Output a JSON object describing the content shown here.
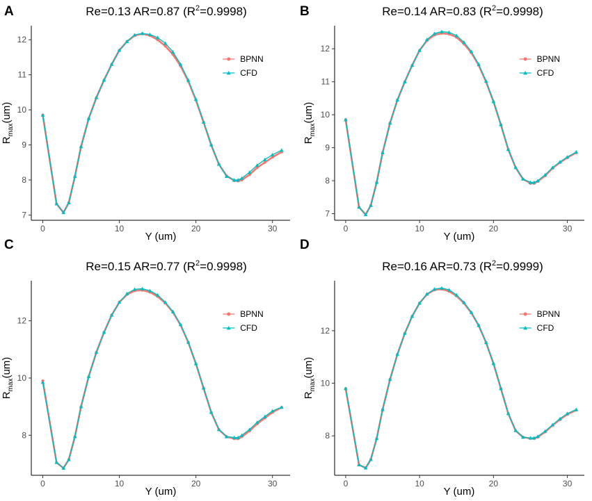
{
  "chart_data": [
    {
      "panel": "A",
      "type": "line",
      "title": {
        "main": "Re=0.13 AR=0.87 (R",
        "sup": "2",
        "tail": "=0.9998)"
      },
      "xlabel": "Y (um)",
      "ylabel": {
        "main": "R",
        "sub": "max",
        "tail": "(um)"
      },
      "xlim": [
        -1.5,
        32.3
      ],
      "ylim": [
        6.85,
        12.4
      ],
      "xticks": [
        0,
        10,
        20,
        30
      ],
      "yticks": [
        7,
        8,
        9,
        10,
        11,
        12
      ],
      "legend": {
        "position": "right",
        "items": [
          "BPNN",
          "CFD"
        ]
      },
      "series": [
        {
          "name": "BPNN",
          "color": "#f8766d",
          "marker": "circle",
          "x": [
            0,
            1.8,
            2.7,
            3.4,
            4.2,
            5.0,
            6.0,
            7.0,
            8.0,
            9.0,
            10.0,
            11.0,
            12.0,
            13.0,
            14.0,
            15.0,
            16.0,
            17.0,
            18.0,
            19.0,
            20.0,
            21.0,
            22.0,
            23.0,
            24.0,
            25.0,
            25.5,
            26.0,
            27.0,
            28.0,
            29.0,
            30.0,
            31.2
          ],
          "y": [
            9.85,
            7.32,
            7.07,
            7.35,
            8.1,
            8.95,
            9.75,
            10.35,
            10.85,
            11.3,
            11.7,
            11.95,
            12.12,
            12.17,
            12.12,
            12.0,
            11.82,
            11.58,
            11.25,
            10.82,
            10.28,
            9.65,
            9.0,
            8.45,
            8.12,
            7.98,
            7.97,
            8.0,
            8.15,
            8.35,
            8.5,
            8.65,
            8.8
          ]
        },
        {
          "name": "CFD",
          "color": "#00bfc4",
          "marker": "triangle",
          "x": [
            0,
            1.8,
            2.7,
            3.4,
            4.2,
            5.0,
            6.0,
            7.0,
            8.0,
            9.0,
            10.0,
            11.0,
            12.0,
            13.0,
            14.0,
            15.0,
            16.0,
            17.0,
            18.0,
            19.0,
            20.0,
            21.0,
            22.0,
            23.0,
            24.0,
            25.0,
            25.5,
            26.0,
            27.0,
            28.0,
            29.0,
            30.0,
            31.2
          ],
          "y": [
            9.85,
            7.32,
            7.07,
            7.35,
            8.1,
            8.95,
            9.75,
            10.35,
            10.85,
            11.3,
            11.7,
            11.95,
            12.14,
            12.18,
            12.15,
            12.06,
            11.9,
            11.65,
            11.3,
            10.85,
            10.3,
            9.65,
            9.0,
            8.45,
            8.1,
            8.0,
            8.0,
            8.05,
            8.22,
            8.42,
            8.58,
            8.72,
            8.85
          ]
        }
      ]
    },
    {
      "panel": "B",
      "type": "line",
      "title": {
        "main": "Re=0.14 AR=0.83 (R",
        "sup": "2",
        "tail": "=0.9998)"
      },
      "xlabel": "Y (um)",
      "ylabel": {
        "main": "R",
        "sub": "max",
        "tail": "(um)"
      },
      "xlim": [
        -1.5,
        32.3
      ],
      "ylim": [
        6.8,
        12.7
      ],
      "xticks": [
        0,
        10,
        20,
        30
      ],
      "yticks": [
        7,
        8,
        9,
        10,
        11,
        12
      ],
      "legend": {
        "position": "right",
        "items": [
          "BPNN",
          "CFD"
        ]
      },
      "series": [
        {
          "name": "BPNN",
          "color": "#f8766d",
          "marker": "circle",
          "x": [
            0,
            1.8,
            2.7,
            3.4,
            4.2,
            5.0,
            6.0,
            7.0,
            8.0,
            9.0,
            10.0,
            11.0,
            12.0,
            13.0,
            14.0,
            15.0,
            16.0,
            17.0,
            18.0,
            19.0,
            20.0,
            21.0,
            22.0,
            23.0,
            24.0,
            25.0,
            25.5,
            26.0,
            27.0,
            28.0,
            29.0,
            30.0,
            31.2
          ],
          "y": [
            9.85,
            7.2,
            6.97,
            7.25,
            7.95,
            8.85,
            9.75,
            10.45,
            11.0,
            11.5,
            11.95,
            12.25,
            12.42,
            12.47,
            12.45,
            12.35,
            12.15,
            11.88,
            11.5,
            11.0,
            10.4,
            9.7,
            8.95,
            8.4,
            8.05,
            7.92,
            7.92,
            7.98,
            8.15,
            8.38,
            8.55,
            8.7,
            8.85
          ]
        },
        {
          "name": "CFD",
          "color": "#00bfc4",
          "marker": "triangle",
          "x": [
            0,
            1.8,
            2.7,
            3.4,
            4.2,
            5.0,
            6.0,
            7.0,
            8.0,
            9.0,
            10.0,
            11.0,
            12.0,
            13.0,
            14.0,
            15.0,
            16.0,
            17.0,
            18.0,
            19.0,
            20.0,
            21.0,
            22.0,
            23.0,
            24.0,
            25.0,
            25.5,
            26.0,
            27.0,
            28.0,
            29.0,
            30.0,
            31.2
          ],
          "y": [
            9.85,
            7.2,
            6.97,
            7.25,
            7.95,
            8.85,
            9.75,
            10.45,
            11.0,
            11.5,
            11.95,
            12.28,
            12.46,
            12.52,
            12.5,
            12.4,
            12.2,
            11.92,
            11.53,
            11.02,
            10.4,
            9.7,
            8.95,
            8.4,
            8.05,
            7.95,
            7.95,
            8.0,
            8.18,
            8.4,
            8.57,
            8.72,
            8.87
          ]
        }
      ]
    },
    {
      "panel": "C",
      "type": "line",
      "title": {
        "main": "Re=0.15 AR=0.77 (R",
        "sup": "2",
        "tail": "=0.9998)"
      },
      "xlabel": "Y (um)",
      "ylabel": {
        "main": "R",
        "sub": "max",
        "tail": "(um)"
      },
      "xlim": [
        -1.5,
        32.3
      ],
      "ylim": [
        6.6,
        13.4
      ],
      "xticks": [
        0,
        10,
        20,
        30
      ],
      "yticks": [
        8,
        10,
        12
      ],
      "legend": {
        "position": "right",
        "items": [
          "BPNN",
          "CFD"
        ]
      },
      "series": [
        {
          "name": "BPNN",
          "color": "#f8766d",
          "marker": "circle",
          "x": [
            0,
            1.8,
            2.7,
            3.4,
            4.2,
            5.0,
            6.0,
            7.0,
            8.0,
            9.0,
            10.0,
            11.0,
            12.0,
            13.0,
            14.0,
            15.0,
            16.0,
            17.0,
            18.0,
            19.0,
            20.0,
            21.0,
            22.0,
            23.0,
            24.0,
            25.0,
            25.5,
            26.0,
            27.0,
            28.0,
            29.0,
            30.0,
            31.2
          ],
          "y": [
            9.9,
            7.05,
            6.85,
            7.15,
            7.95,
            9.0,
            10.05,
            10.9,
            11.6,
            12.2,
            12.65,
            12.92,
            13.05,
            13.07,
            13.0,
            12.85,
            12.62,
            12.3,
            11.85,
            11.25,
            10.5,
            9.65,
            8.8,
            8.2,
            7.95,
            7.88,
            7.88,
            7.95,
            8.15,
            8.4,
            8.6,
            8.8,
            8.97
          ]
        },
        {
          "name": "CFD",
          "color": "#00bfc4",
          "marker": "triangle",
          "x": [
            0,
            1.8,
            2.7,
            3.4,
            4.2,
            5.0,
            6.0,
            7.0,
            8.0,
            9.0,
            10.0,
            11.0,
            12.0,
            13.0,
            14.0,
            15.0,
            16.0,
            17.0,
            18.0,
            19.0,
            20.0,
            21.0,
            22.0,
            23.0,
            24.0,
            25.0,
            25.5,
            26.0,
            27.0,
            28.0,
            29.0,
            30.0,
            31.2
          ],
          "y": [
            9.85,
            7.05,
            6.85,
            7.15,
            7.95,
            9.0,
            10.05,
            10.9,
            11.6,
            12.2,
            12.65,
            12.95,
            13.1,
            13.12,
            13.05,
            12.9,
            12.65,
            12.32,
            11.87,
            11.25,
            10.5,
            9.65,
            8.8,
            8.2,
            7.95,
            7.92,
            7.92,
            8.0,
            8.2,
            8.45,
            8.65,
            8.85,
            8.98
          ]
        }
      ]
    },
    {
      "panel": "D",
      "type": "line",
      "title": {
        "main": "Re=0.16 AR=0.73 (R",
        "sup": "2",
        "tail": "=0.9999)"
      },
      "xlabel": "Y (um)",
      "ylabel": {
        "main": "R",
        "sub": "max",
        "tail": "(um)"
      },
      "xlim": [
        -1.5,
        32.3
      ],
      "ylim": [
        6.5,
        13.9
      ],
      "xticks": [
        0,
        10,
        20,
        30
      ],
      "yticks": [
        8,
        10,
        12
      ],
      "legend": {
        "position": "right",
        "items": [
          "BPNN",
          "CFD"
        ]
      },
      "series": [
        {
          "name": "BPNN",
          "color": "#f8766d",
          "marker": "circle",
          "x": [
            0,
            1.8,
            2.7,
            3.4,
            4.2,
            5.0,
            6.0,
            7.0,
            8.0,
            9.0,
            10.0,
            11.0,
            12.0,
            13.0,
            14.0,
            15.0,
            16.0,
            17.0,
            18.0,
            19.0,
            20.0,
            21.0,
            22.0,
            23.0,
            24.0,
            25.0,
            25.5,
            26.0,
            27.0,
            28.0,
            29.0,
            30.0,
            31.2
          ],
          "y": [
            9.8,
            6.9,
            6.78,
            7.1,
            7.9,
            9.0,
            10.15,
            11.1,
            11.9,
            12.55,
            13.05,
            13.38,
            13.55,
            13.58,
            13.5,
            13.32,
            13.05,
            12.68,
            12.2,
            11.55,
            10.75,
            9.8,
            8.85,
            8.2,
            7.95,
            7.9,
            7.9,
            7.95,
            8.15,
            8.4,
            8.62,
            8.82,
            8.98
          ]
        },
        {
          "name": "CFD",
          "color": "#00bfc4",
          "marker": "triangle",
          "x": [
            0,
            1.8,
            2.7,
            3.4,
            4.2,
            5.0,
            6.0,
            7.0,
            8.0,
            9.0,
            10.0,
            11.0,
            12.0,
            13.0,
            14.0,
            15.0,
            16.0,
            17.0,
            18.0,
            19.0,
            20.0,
            21.0,
            22.0,
            23.0,
            24.0,
            25.0,
            25.5,
            26.0,
            27.0,
            28.0,
            29.0,
            30.0,
            31.2
          ],
          "y": [
            9.8,
            6.9,
            6.78,
            7.1,
            7.9,
            9.0,
            10.15,
            11.1,
            11.9,
            12.55,
            13.05,
            13.4,
            13.58,
            13.62,
            13.55,
            13.36,
            13.08,
            12.7,
            12.2,
            11.55,
            10.75,
            9.8,
            8.85,
            8.2,
            7.95,
            7.92,
            7.92,
            7.98,
            8.18,
            8.42,
            8.65,
            8.85,
            9.0
          ]
        }
      ]
    }
  ]
}
